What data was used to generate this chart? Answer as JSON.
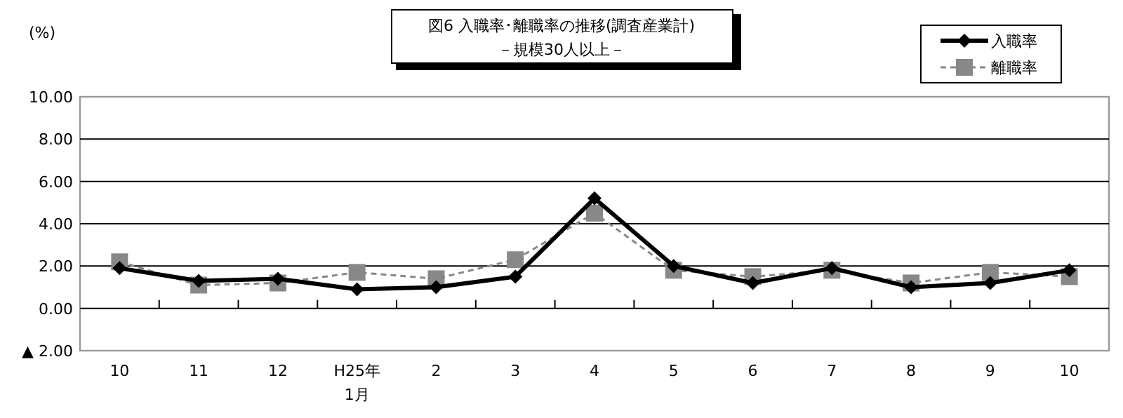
{
  "chart_data": {
    "type": "line",
    "title": "図6  入職率･離職率の推移(調査産業計)",
    "subtitle": "－規模30人以上－",
    "ylabel": "(%)",
    "categories": [
      "10",
      "11",
      "12",
      "H25年\n1月",
      "2",
      "3",
      "4",
      "5",
      "6",
      "7",
      "8",
      "9",
      "10"
    ],
    "series": [
      {
        "name": "入職率",
        "color": "#000000",
        "marker": "diamond",
        "line_style": "solid",
        "values": [
          1.9,
          1.3,
          1.4,
          0.9,
          1.0,
          1.5,
          5.2,
          2.0,
          1.2,
          1.9,
          1.0,
          1.2,
          1.8
        ]
      },
      {
        "name": "離職率",
        "color": "#888888",
        "marker": "square",
        "line_style": "dashed",
        "values": [
          2.2,
          1.1,
          1.2,
          1.7,
          1.4,
          2.3,
          4.5,
          1.8,
          1.5,
          1.8,
          1.2,
          1.7,
          1.5
        ]
      }
    ],
    "ylim": [
      -2,
      10
    ],
    "yticks": [
      {
        "value": -2,
        "label": "▲ 2.00"
      },
      {
        "value": 0,
        "label": "0.00"
      },
      {
        "value": 2,
        "label": "2.00"
      },
      {
        "value": 4,
        "label": "4.00"
      },
      {
        "value": 6,
        "label": "6.00"
      },
      {
        "value": 8,
        "label": "8.00"
      },
      {
        "value": 10,
        "label": "10.00"
      }
    ],
    "grid": "y",
    "legend": "top right"
  }
}
